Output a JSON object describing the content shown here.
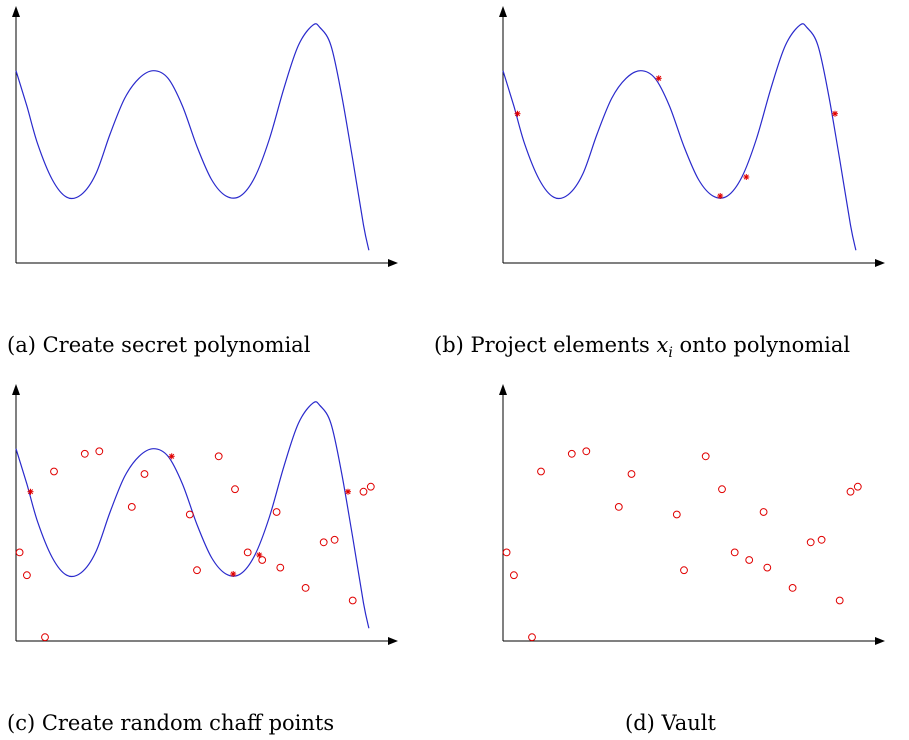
{
  "captions": {
    "a": "(a) Create secret polynomial",
    "b_prefix": "(b) Project elements ",
    "b_var": "x",
    "b_sub": "i",
    "b_suffix": " onto polynomial",
    "c": "(c) Create random chaff points",
    "d": "(d) Vault"
  },
  "colors": {
    "curve": "#2a2acc",
    "genuine_point": "#e00000",
    "chaff_point": "#e00000",
    "axis": "#000000"
  },
  "chart_data": {
    "type": "diagram",
    "panels": [
      {
        "id": "a",
        "show_curve": true,
        "show_genuine": false,
        "show_chaff": false
      },
      {
        "id": "b",
        "show_curve": true,
        "show_genuine": true,
        "show_chaff": false
      },
      {
        "id": "c",
        "show_curve": true,
        "show_genuine": true,
        "show_chaff": true
      },
      {
        "id": "d",
        "show_curve": false,
        "show_genuine": false,
        "show_chaff": true
      }
    ],
    "curve": [
      [
        0.0,
        0.76
      ],
      [
        0.03,
        0.62
      ],
      [
        0.06,
        0.47
      ],
      [
        0.1,
        0.33
      ],
      [
        0.14,
        0.26
      ],
      [
        0.18,
        0.27
      ],
      [
        0.22,
        0.35
      ],
      [
        0.26,
        0.51
      ],
      [
        0.3,
        0.65
      ],
      [
        0.34,
        0.73
      ],
      [
        0.38,
        0.76
      ],
      [
        0.42,
        0.73
      ],
      [
        0.46,
        0.62
      ],
      [
        0.5,
        0.46
      ],
      [
        0.54,
        0.33
      ],
      [
        0.58,
        0.265
      ],
      [
        0.62,
        0.265
      ],
      [
        0.66,
        0.34
      ],
      [
        0.7,
        0.49
      ],
      [
        0.74,
        0.69
      ],
      [
        0.78,
        0.86
      ],
      [
        0.82,
        0.94
      ],
      [
        0.84,
        0.93
      ],
      [
        0.87,
        0.86
      ],
      [
        0.9,
        0.66
      ],
      [
        0.93,
        0.41
      ],
      [
        0.96,
        0.15
      ],
      [
        0.975,
        0.05
      ]
    ],
    "genuine_points": [
      [
        0.04,
        0.59
      ],
      [
        0.43,
        0.73
      ],
      [
        0.6,
        0.265
      ],
      [
        0.672,
        0.34
      ],
      [
        0.917,
        0.59
      ]
    ],
    "chaff_points": [
      [
        0.01,
        0.35
      ],
      [
        0.03,
        0.26
      ],
      [
        0.08,
        0.015
      ],
      [
        0.105,
        0.67
      ],
      [
        0.19,
        0.74
      ],
      [
        0.23,
        0.75
      ],
      [
        0.32,
        0.53
      ],
      [
        0.355,
        0.66
      ],
      [
        0.48,
        0.5
      ],
      [
        0.5,
        0.28
      ],
      [
        0.56,
        0.73
      ],
      [
        0.605,
        0.6
      ],
      [
        0.64,
        0.35
      ],
      [
        0.68,
        0.32
      ],
      [
        0.72,
        0.51
      ],
      [
        0.73,
        0.29
      ],
      [
        0.8,
        0.21
      ],
      [
        0.85,
        0.39
      ],
      [
        0.88,
        0.4
      ],
      [
        0.93,
        0.16
      ],
      [
        0.96,
        0.59
      ],
      [
        0.98,
        0.61
      ]
    ]
  }
}
